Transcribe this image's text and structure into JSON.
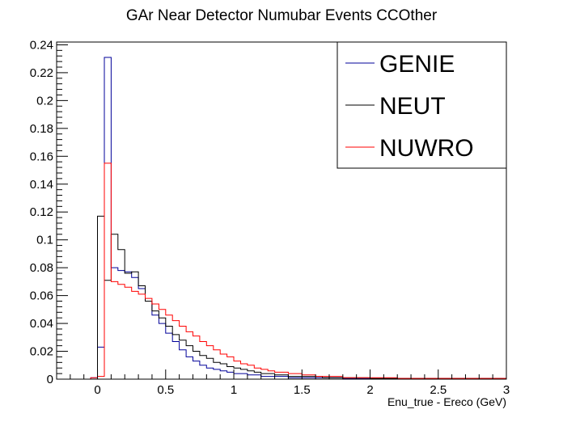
{
  "chart_data": {
    "type": "line",
    "title": "GAr Near Detector Numubar Events CCOther",
    "xlabel": "Enu_true - Ereco (GeV)",
    "ylabel": "",
    "xlim": [
      -0.3,
      3.0
    ],
    "ylim": [
      0,
      0.242
    ],
    "xticks": [
      "0",
      "0.5",
      "1",
      "1.5",
      "2",
      "2.5",
      "3"
    ],
    "xtick_values": [
      0,
      0.5,
      1,
      1.5,
      2,
      2.5,
      3
    ],
    "yticks": [
      "0",
      "0.02",
      "0.04",
      "0.06",
      "0.08",
      "0.1",
      "0.12",
      "0.14",
      "0.16",
      "0.18",
      "0.2",
      "0.22",
      "0.24"
    ],
    "ytick_values": [
      0,
      0.02,
      0.04,
      0.06,
      0.08,
      0.1,
      0.12,
      0.14,
      0.16,
      0.18,
      0.2,
      0.22,
      0.24
    ],
    "bin_width": 0.05,
    "bin_edges_start": -0.3,
    "legend_position": "top-right",
    "grid": false,
    "series": [
      {
        "name": "GENIE",
        "color": "#000099",
        "values": [
          0,
          0,
          0,
          0,
          0,
          0.001,
          0.023,
          0.231,
          0.08,
          0.078,
          0.077,
          0.073,
          0.065,
          0.056,
          0.046,
          0.04,
          0.033,
          0.027,
          0.021,
          0.016,
          0.013,
          0.01,
          0.008,
          0.007,
          0.006,
          0.005,
          0.004,
          0.004,
          0.003,
          0.003,
          0.002,
          0.002,
          0.002,
          0.002,
          0.001,
          0.001,
          0.001,
          0.001,
          0.001,
          0.001,
          0.001,
          0.001,
          0.0005,
          0.0005,
          0.0005,
          0.0005,
          0.0005,
          0.0005,
          0.0005,
          0.0005,
          0.0005,
          0.0005,
          0.0005,
          0.0005,
          0.0005,
          0.0005,
          0.0005,
          0.0005,
          0.0005,
          0.0005,
          0.0005,
          0.0005,
          0.0005,
          0.0005,
          0.0005,
          0.0005
        ]
      },
      {
        "name": "NEUT",
        "color": "#000000",
        "values": [
          0,
          0,
          0,
          0,
          0,
          0,
          0.117,
          0.071,
          0.104,
          0.093,
          0.076,
          0.077,
          0.067,
          0.056,
          0.049,
          0.044,
          0.038,
          0.032,
          0.028,
          0.024,
          0.02,
          0.017,
          0.015,
          0.012,
          0.011,
          0.009,
          0.008,
          0.007,
          0.006,
          0.005,
          0.004,
          0.004,
          0.003,
          0.003,
          0.002,
          0.002,
          0.002,
          0.002,
          0.002,
          0.001,
          0.001,
          0.001,
          0.001,
          0.001,
          0.001,
          0.001,
          0.0005,
          0.0005,
          0.0005,
          0.0005,
          0.0005,
          0.0005,
          0.0005,
          0.0005,
          0.0005,
          0.0005,
          0.0005,
          0.0005,
          0.0005,
          0.0005,
          0.0005,
          0.0005,
          0.0005,
          0.0005,
          0.0005,
          0.0005
        ]
      },
      {
        "name": "NUWRO",
        "color": "#ff0000",
        "values": [
          0,
          0,
          0,
          0,
          0,
          0.001,
          0.002,
          0.155,
          0.07,
          0.068,
          0.066,
          0.063,
          0.061,
          0.058,
          0.054,
          0.05,
          0.046,
          0.042,
          0.038,
          0.034,
          0.031,
          0.027,
          0.024,
          0.021,
          0.018,
          0.016,
          0.013,
          0.011,
          0.01,
          0.008,
          0.007,
          0.006,
          0.005,
          0.005,
          0.004,
          0.004,
          0.003,
          0.003,
          0.002,
          0.002,
          0.002,
          0.002,
          0.001,
          0.001,
          0.001,
          0.001,
          0.001,
          0.001,
          0.001,
          0.001,
          0.0005,
          0.0005,
          0.0005,
          0.0005,
          0.0005,
          0.0005,
          0.0005,
          0.0005,
          0.0005,
          0.0005,
          0.0005,
          0.0005,
          0.0005,
          0.0005,
          0.0005,
          0.0005
        ]
      }
    ]
  }
}
